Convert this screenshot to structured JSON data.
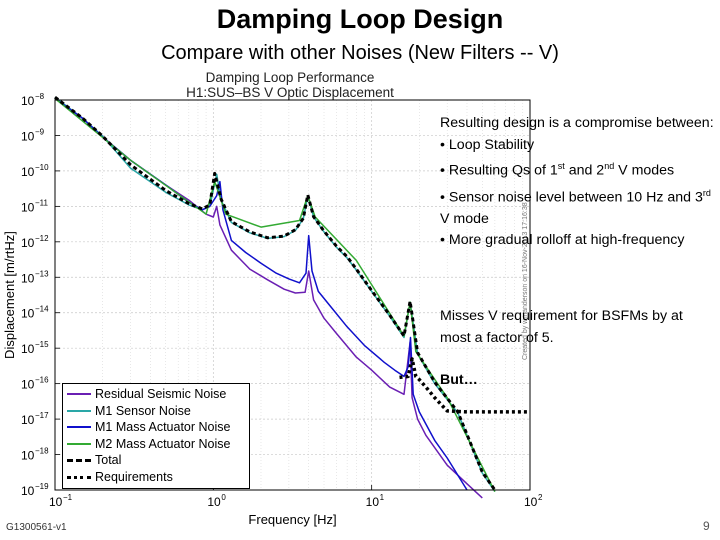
{
  "slide": {
    "title": "Damping Loop Design",
    "subtitle": "Compare with other Noises (New Filters -- V)",
    "footer_id": "G1300561-v1",
    "page_number": "9"
  },
  "text_panel": {
    "bullets": [
      {
        "id": "intro",
        "text": "Resulting design is a compromise between:"
      },
      {
        "id": "b1",
        "text": "• Loop Stability"
      },
      {
        "id": "b2_pre",
        "text": "• Resulting Qs of 1"
      },
      {
        "id": "b2_sup1",
        "text": "st"
      },
      {
        "id": "b2_mid",
        "text": " and 2"
      },
      {
        "id": "b2_sup2",
        "text": "nd"
      },
      {
        "id": "b2_post",
        "text": " V modes"
      },
      {
        "id": "b3_pre",
        "text": "• Sensor noise level between 10 Hz and 3"
      },
      {
        "id": "b3_sup",
        "text": "rd"
      },
      {
        "id": "b3_post",
        "text": " V mode"
      },
      {
        "id": "b4",
        "text": "• More gradual rolloff at high-frequency"
      }
    ],
    "para2": "Misses V requirement for BSFMs by at most a factor of 5.",
    "para3": "But…"
  },
  "watermark": "Created by wmanderson on 16-Nov-2013 17:16:38",
  "chart_data": {
    "type": "line",
    "title": "Damping Loop Performance",
    "subtitle": "H1:SUS–BS V Optic Displacement",
    "xlabel": "Frequency [Hz]",
    "ylabel": "Displacement [m/rtHz]",
    "xscale": "log",
    "yscale": "log",
    "xlim": [
      0.1,
      100
    ],
    "ylim": [
      1e-19,
      1e-08
    ],
    "x_ticks": [
      {
        "value": 0.1,
        "base": "10",
        "exp": "−1"
      },
      {
        "value": 1,
        "base": "10",
        "exp": "0"
      },
      {
        "value": 10,
        "base": "10",
        "exp": "1"
      },
      {
        "value": 100,
        "base": "10",
        "exp": "2"
      }
    ],
    "y_ticks": [
      {
        "value": 1e-08,
        "base": "10",
        "exp": "−8"
      },
      {
        "value": 1e-09,
        "base": "10",
        "exp": "−9"
      },
      {
        "value": 1e-10,
        "base": "10",
        "exp": "−10"
      },
      {
        "value": 1e-11,
        "base": "10",
        "exp": "−11"
      },
      {
        "value": 1e-12,
        "base": "10",
        "exp": "−12"
      },
      {
        "value": 1e-13,
        "base": "10",
        "exp": "−13"
      },
      {
        "value": 1e-14,
        "base": "10",
        "exp": "−14"
      },
      {
        "value": 1e-15,
        "base": "10",
        "exp": "−15"
      },
      {
        "value": 1e-16,
        "base": "10",
        "exp": "−16"
      },
      {
        "value": 1e-17,
        "base": "10",
        "exp": "−17"
      },
      {
        "value": 1e-18,
        "base": "10",
        "exp": "−18"
      },
      {
        "value": 1e-19,
        "base": "10",
        "exp": "−19"
      }
    ],
    "grid": true,
    "legend_position": "bottom-left",
    "series": [
      {
        "name": "Residual Seismic Noise",
        "color": "#6a1fb3",
        "style": "solid",
        "x": [
          0.1,
          0.15,
          0.2,
          0.3,
          0.5,
          0.7,
          0.9,
          1.0,
          1.05,
          1.1,
          1.3,
          1.7,
          2.2,
          2.8,
          3.3,
          3.8,
          4.0,
          4.3,
          5.0,
          6.0,
          8.0,
          10.0,
          13.0,
          16.0,
          17.5,
          18.0,
          19.5,
          22.0,
          30.0,
          40.0,
          50.0
        ],
        "y": [
          1.1e-08,
          3e-09,
          9e-10,
          2e-10,
          4e-11,
          1.5e-11,
          6e-12,
          5e-12,
          1e-11,
          3e-12,
          5.8e-13,
          1.7e-13,
          8.5e-14,
          4.6e-14,
          3.6e-14,
          3.8e-14,
          1.5e-13,
          2.3e-14,
          7e-15,
          2.6e-15,
          5.6e-16,
          2.4e-16,
          8e-17,
          5e-17,
          1.5e-15,
          4e-17,
          1e-17,
          3.5e-18,
          5e-19,
          1.5e-19,
          6e-20
        ]
      },
      {
        "name": "M1 Sensor Noise",
        "color": "#2aa7a7",
        "style": "solid",
        "x": [
          0.1,
          0.15,
          0.2,
          0.3,
          0.5,
          0.7,
          0.85,
          0.95,
          1.05,
          1.12,
          1.3,
          1.7,
          2.2,
          2.8,
          3.3,
          3.7,
          3.95,
          4.3,
          5.0,
          6.0,
          7.0,
          8.0,
          10.0,
          13.0,
          16.0,
          17.5,
          19.5,
          25.0,
          35.0,
          50.0,
          60.0
        ],
        "y": [
          1.2e-08,
          3e-09,
          9.5e-10,
          1.2e-10,
          2.5e-11,
          1.1e-11,
          8e-12,
          1e-11,
          8e-11,
          1.5e-11,
          3.5e-12,
          1.8e-12,
          1.25e-12,
          1.4e-12,
          2.1e-12,
          4.5e-12,
          2e-11,
          5e-12,
          1.9e-12,
          7e-13,
          3.5e-13,
          1.6e-13,
          4e-14,
          8e-15,
          2e-15,
          2e-14,
          7e-16,
          1e-16,
          1.5e-17,
          3e-19,
          9e-20
        ]
      },
      {
        "name": "M1 Mass Actuator Noise",
        "color": "#1010cc",
        "style": "solid",
        "x": [
          0.1,
          0.15,
          0.2,
          0.3,
          0.5,
          0.7,
          0.85,
          0.95,
          1.05,
          1.1,
          1.15,
          1.3,
          1.6,
          2.0,
          2.5,
          3.0,
          3.5,
          3.85,
          4.0,
          4.2,
          4.6,
          5.5,
          7.0,
          9.0,
          12.0,
          14.0,
          16.0,
          17.0,
          17.6,
          18.3,
          20.0,
          25.0,
          30.0,
          40.0
        ],
        "y": [
          1.1e-08,
          3e-09,
          9e-10,
          2e-10,
          4e-11,
          1.3e-11,
          8e-12,
          1e-11,
          2e-11,
          5e-11,
          8e-12,
          1.1e-12,
          5e-13,
          2.5e-13,
          1.3e-13,
          9e-14,
          7e-14,
          1.3e-13,
          1.5e-12,
          1.5e-13,
          4e-14,
          1.5e-14,
          4e-15,
          1.2e-15,
          4e-16,
          2.4e-16,
          1.6e-16,
          3e-16,
          2e-15,
          5e-17,
          1.6e-17,
          2.5e-18,
          8e-19,
          1e-19
        ]
      },
      {
        "name": "M2 Mass Actuator Noise",
        "color": "#33aa33",
        "style": "solid",
        "x": [
          0.1,
          0.3,
          0.9,
          1.02,
          1.2,
          2.0,
          3.5,
          3.95,
          4.4,
          8.0,
          16.0,
          17.5,
          19.0,
          30.0,
          60.0
        ],
        "y": [
          1.1e-08,
          2e-10,
          6e-12,
          5e-11,
          6e-12,
          2.6e-12,
          4e-12,
          2e-11,
          5e-12,
          3e-13,
          2.2e-15,
          2e-14,
          8e-16,
          4e-17,
          9e-20
        ]
      },
      {
        "name": "Total",
        "color": "#000000",
        "style": "dashed",
        "x": [
          0.1,
          0.15,
          0.2,
          0.3,
          0.5,
          0.7,
          0.85,
          0.95,
          1.02,
          1.12,
          1.3,
          1.7,
          2.2,
          2.8,
          3.3,
          3.7,
          3.95,
          4.3,
          5.0,
          6.0,
          7.0,
          8.0,
          10.0,
          13.0,
          16.0,
          17.5,
          19.5,
          25.0,
          35.0,
          50.0,
          60.0
        ],
        "y": [
          1.2e-08,
          3e-09,
          9.5e-10,
          1.5e-10,
          2.8e-11,
          1.2e-11,
          8.5e-12,
          1.1e-11,
          8.5e-11,
          1.6e-11,
          3.7e-12,
          1.9e-12,
          1.3e-12,
          1.45e-12,
          2.2e-12,
          4.6e-12,
          2.1e-11,
          5.1e-12,
          2e-12,
          7.5e-13,
          3.8e-13,
          1.7e-13,
          4.2e-14,
          8.5e-15,
          2.2e-15,
          2.1e-14,
          7.5e-16,
          1.1e-16,
          1.6e-17,
          3.2e-19,
          1e-19
        ]
      },
      {
        "name": "Requirements",
        "color": "#000000",
        "style": "dotted",
        "x": [
          15.0,
          17.0,
          18.0,
          19.0,
          20.0,
          22.0,
          25.0,
          30.0,
          40.0,
          50.0,
          60.0,
          80.0,
          100.0
        ],
        "y": [
          1.5e-16,
          1.6e-16,
          5e-16,
          1.6e-16,
          1.3e-16,
          8e-17,
          4e-17,
          1.7e-17,
          1.6e-17,
          1.6e-17,
          1.6e-17,
          1.6e-17,
          1.6e-17
        ]
      }
    ]
  }
}
